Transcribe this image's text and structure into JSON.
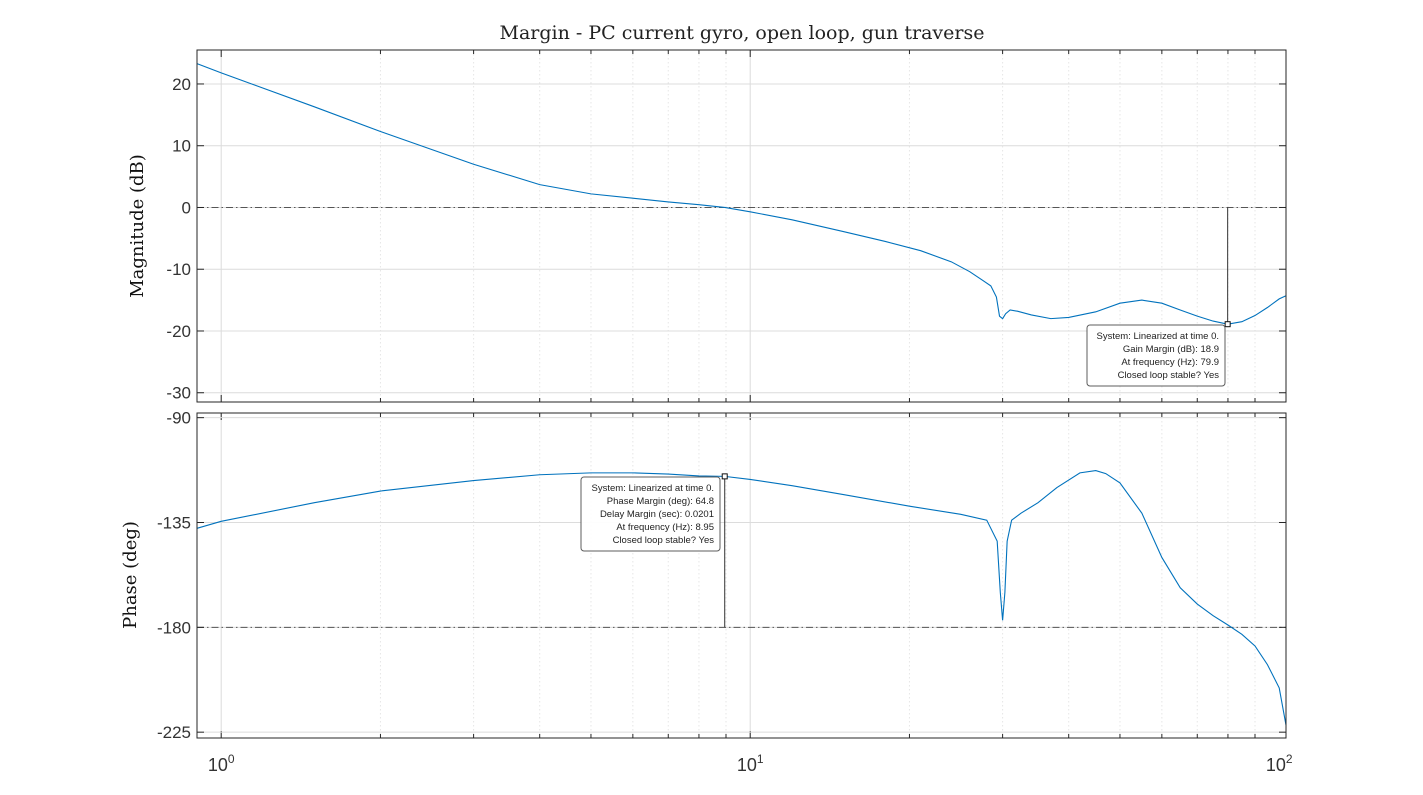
{
  "chart_data": {
    "type": "line",
    "title": "Margin - PC current gyro, open loop, gun traverse",
    "xscale": "log",
    "xlim": [
      0.9,
      103
    ],
    "grid": true,
    "line_color": "#0072BD",
    "x_ticks": [
      {
        "value": 1,
        "base": "10",
        "exp": "0"
      },
      {
        "value": 10,
        "base": "10",
        "exp": "1"
      },
      {
        "value": 100,
        "base": "10",
        "exp": "2"
      }
    ],
    "magnitude": {
      "ylabel": "Magnitude (dB)",
      "ylim": [
        -31.5,
        25.5
      ],
      "yticks": [
        20,
        10,
        0,
        -10,
        -20,
        -30
      ],
      "ytick_labels": [
        "20",
        "10",
        "0",
        "-10",
        "-20",
        "-30"
      ],
      "reference_line": 0,
      "x": [
        0.9,
        1,
        1.5,
        2,
        3,
        4,
        5,
        6,
        7,
        8,
        8.95,
        10,
        12,
        15,
        18,
        21,
        24,
        26,
        27.5,
        28.5,
        29.2,
        29.6,
        30,
        30.4,
        31,
        32,
        34,
        37,
        40,
        45,
        50,
        55,
        60,
        65,
        70,
        75,
        79.9,
        85,
        90,
        95,
        100,
        103
      ],
      "values": [
        23.3,
        21.8,
        16.3,
        12.3,
        7.0,
        3.7,
        2.2,
        1.5,
        0.9,
        0.45,
        0.0,
        -0.7,
        -2.0,
        -3.9,
        -5.5,
        -7.0,
        -8.8,
        -10.4,
        -11.8,
        -12.7,
        -14.5,
        -17.6,
        -18.0,
        -17.2,
        -16.6,
        -16.8,
        -17.4,
        -18.0,
        -17.8,
        -16.9,
        -15.5,
        -15.0,
        -15.5,
        -16.6,
        -17.6,
        -18.4,
        -18.9,
        -18.5,
        -17.5,
        -16.2,
        -14.8,
        -14.3
      ]
    },
    "phase": {
      "ylabel": "Phase (deg)",
      "ylim": [
        -227.5,
        -88
      ],
      "yticks": [
        -90,
        -135,
        -180,
        -225
      ],
      "ytick_labels": [
        "-90",
        "-135",
        "-180",
        "-225"
      ],
      "reference_line": -180,
      "x": [
        0.9,
        1,
        1.5,
        2,
        3,
        4,
        5,
        6,
        7,
        8,
        8.95,
        10,
        12,
        15,
        20,
        25,
        28,
        29.3,
        29.7,
        30.0,
        30.3,
        30.6,
        31.2,
        32.5,
        35,
        38,
        42,
        45,
        47,
        50,
        55,
        60,
        65,
        70,
        75,
        80,
        85,
        90,
        95,
        100,
        103
      ],
      "values": [
        -137.5,
        -134.5,
        -126.5,
        -121.5,
        -117,
        -114.5,
        -113.7,
        -113.7,
        -114.2,
        -115,
        -115.2,
        -116.5,
        -119.2,
        -123.0,
        -128.0,
        -131.5,
        -134.0,
        -143.0,
        -165.0,
        -177.0,
        -165.0,
        -143.0,
        -134.0,
        -131.0,
        -126.5,
        -120.0,
        -113.7,
        -112.7,
        -114.0,
        -118.0,
        -131.0,
        -150.0,
        -163.0,
        -170.0,
        -175.0,
        -179.0,
        -183.0,
        -188.0,
        -196.0,
        -206.0,
        -222.0
      ]
    },
    "annotations": {
      "gain": {
        "x": 79.9,
        "y": -18.9,
        "lines": [
          "System: Linearized at time 0.",
          "Gain Margin (dB): 18.9",
          "At frequency (Hz): 79.9",
          "Closed loop stable? Yes"
        ]
      },
      "phase": {
        "x": 8.95,
        "y": -115.2,
        "lines": [
          "System: Linearized at time 0.",
          "Phase Margin (deg): 64.8",
          "Delay Margin (sec): 0.0201",
          "At frequency (Hz): 8.95",
          "Closed loop stable? Yes"
        ]
      }
    }
  }
}
